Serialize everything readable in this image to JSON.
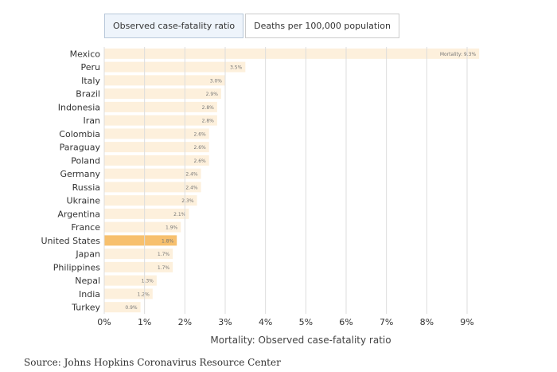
{
  "tabs": [
    {
      "label": "Observed case-fatality ratio",
      "active": true
    },
    {
      "label": "Deaths per 100,000 population",
      "active": false
    }
  ],
  "source": "Source: Johns Hopkins Coronavirus Resource Center",
  "chart_data": {
    "type": "bar",
    "orientation": "horizontal",
    "categories": [
      "Mexico",
      "Peru",
      "Italy",
      "Brazil",
      "Indonesia",
      "Iran",
      "Colombia",
      "Paraguay",
      "Poland",
      "Germany",
      "Russia",
      "Ukraine",
      "Argentina",
      "France",
      "United States",
      "Japan",
      "Philippines",
      "Nepal",
      "India",
      "Turkey"
    ],
    "values": [
      9.3,
      3.5,
      3.0,
      2.9,
      2.8,
      2.8,
      2.6,
      2.6,
      2.6,
      2.4,
      2.4,
      2.3,
      2.1,
      1.9,
      1.8,
      1.7,
      1.7,
      1.3,
      1.2,
      0.9
    ],
    "data_labels": [
      "Mortality: 9.3%",
      "3.5%",
      "3.0%",
      "2.9%",
      "2.8%",
      "2.8%",
      "2.6%",
      "2.6%",
      "2.6%",
      "2.4%",
      "2.4%",
      "2.3%",
      "2.1%",
      "1.9%",
      "1.8%",
      "1.7%",
      "1.7%",
      "1.3%",
      "1.2%",
      "0.9%"
    ],
    "highlight": "United States",
    "xlabel": "Mortality: Observed case-fatality ratio",
    "xticks": [
      "0%",
      "1%",
      "2%",
      "3%",
      "4%",
      "5%",
      "6%",
      "7%",
      "8%",
      "9%"
    ],
    "xlim": [
      0,
      9
    ],
    "grid": true,
    "colors": {
      "bar": "#fdf0dc",
      "highlight": "#f7c06e",
      "grid": "#dddddd"
    }
  }
}
